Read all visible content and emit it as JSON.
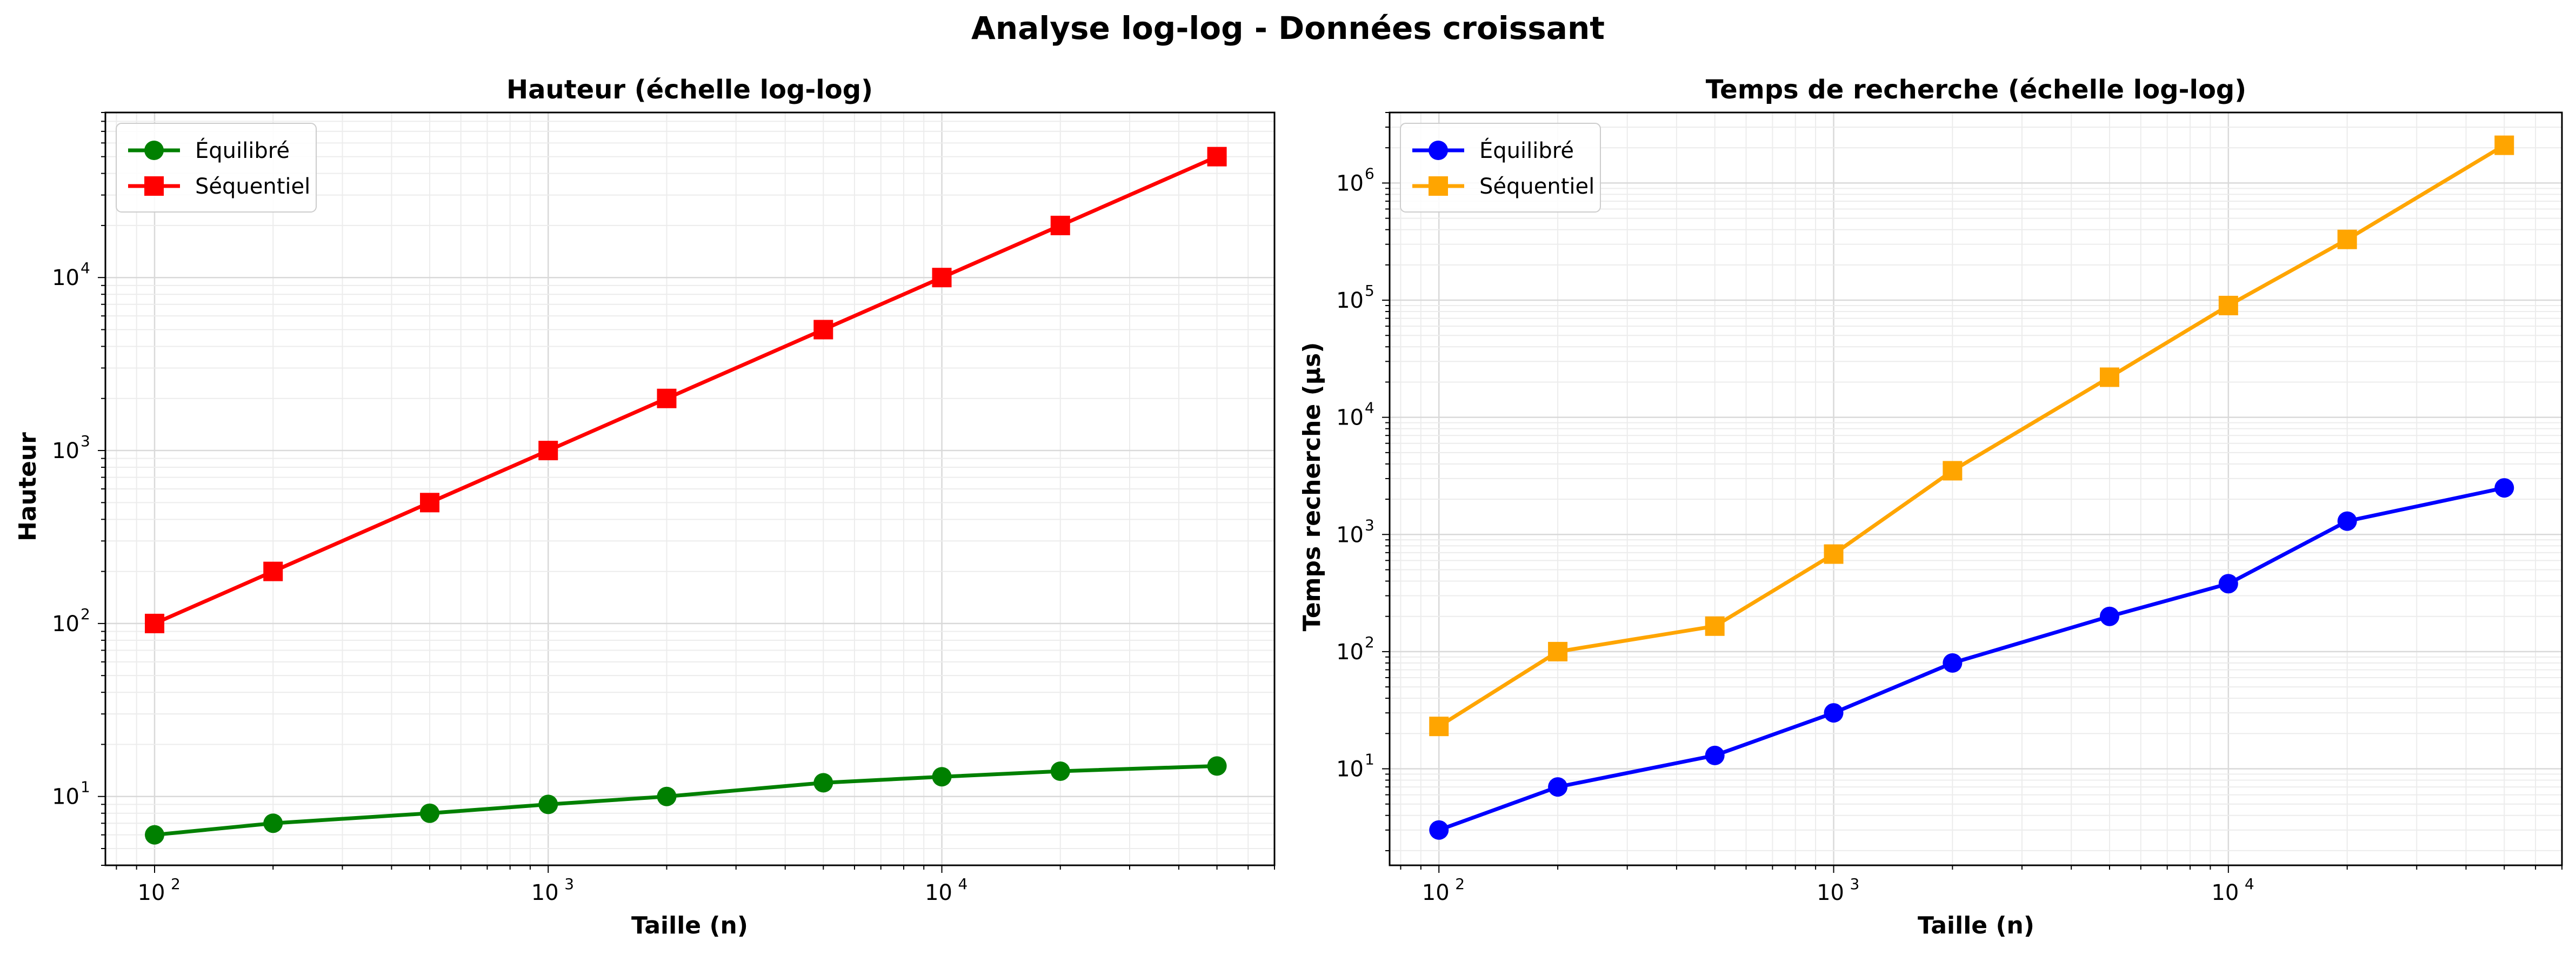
{
  "figure": {
    "suptitle": "Analyse log-log - Données croissant"
  },
  "chart_data": [
    {
      "type": "line",
      "title": "Hauteur (échelle log-log)",
      "xlabel": "Taille (n)",
      "ylabel": "Hauteur",
      "xscale": "log",
      "yscale": "log",
      "xlim": [
        75,
        70000
      ],
      "ylim": [
        4,
        90000
      ],
      "grid": true,
      "legend_placement": "top-left",
      "x": [
        100,
        200,
        500,
        1000,
        2000,
        5000,
        10000,
        20000,
        50000
      ],
      "x_tick_labels": [
        "10",
        "10",
        "10"
      ],
      "x_tick_exponents": [
        "2",
        "3",
        "4"
      ],
      "x_tick_values": [
        100,
        1000,
        10000
      ],
      "y_tick_labels": [
        "10",
        "10",
        "10",
        "10"
      ],
      "y_tick_exponents": [
        "1",
        "2",
        "3",
        "4"
      ],
      "y_tick_values": [
        10,
        100,
        1000,
        10000
      ],
      "series": [
        {
          "name": "Équilibré",
          "color": "#008000",
          "marker": "circle",
          "values": [
            6,
            7,
            8,
            9,
            10,
            12,
            13,
            14,
            15
          ]
        },
        {
          "name": "Séquentiel",
          "color": "#ff0000",
          "marker": "square",
          "values": [
            100,
            200,
            500,
            1000,
            2000,
            5000,
            10000,
            20000,
            50000
          ]
        }
      ]
    },
    {
      "type": "line",
      "title": "Temps de recherche (échelle log-log)",
      "xlabel": "Taille (n)",
      "ylabel": "Temps recherche (µs)",
      "xscale": "log",
      "yscale": "log",
      "xlim": [
        75,
        70000
      ],
      "ylim": [
        1.5,
        4000000
      ],
      "grid": true,
      "legend_placement": "top-left",
      "x": [
        100,
        200,
        500,
        1000,
        2000,
        5000,
        10000,
        20000,
        50000
      ],
      "x_tick_labels": [
        "10",
        "10",
        "10"
      ],
      "x_tick_exponents": [
        "2",
        "3",
        "4"
      ],
      "x_tick_values": [
        100,
        1000,
        10000
      ],
      "y_tick_labels": [
        "10",
        "10",
        "10",
        "10",
        "10",
        "10"
      ],
      "y_tick_exponents": [
        "1",
        "2",
        "3",
        "4",
        "5",
        "6"
      ],
      "y_tick_values": [
        10,
        100,
        1000,
        10000,
        100000,
        1000000
      ],
      "series": [
        {
          "name": "Équilibré",
          "color": "#0000ff",
          "marker": "circle",
          "values": [
            3,
            7,
            13,
            30,
            80,
            200,
            380,
            1300,
            2500
          ]
        },
        {
          "name": "Séquentiel",
          "color": "#ffa500",
          "marker": "square",
          "values": [
            23,
            100,
            165,
            680,
            3500,
            22000,
            90000,
            330000,
            2100000
          ]
        }
      ]
    }
  ]
}
